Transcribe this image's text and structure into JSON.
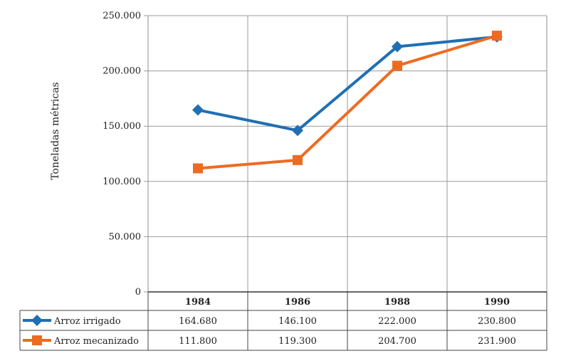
{
  "chart_data": {
    "type": "line",
    "title": "",
    "xlabel": "",
    "ylabel": "Toneladas métricas",
    "categories": [
      "1984",
      "1986",
      "1988",
      "1990"
    ],
    "ylim": [
      0,
      250000
    ],
    "yticks": [
      0,
      50000,
      100000,
      150000,
      200000,
      250000
    ],
    "ytick_labels": [
      "0",
      "50.000",
      "100.000",
      "150.000",
      "200.000",
      "250.000"
    ],
    "grid": true,
    "legend": "data-table",
    "series": [
      {
        "name": "Arroz irrigado",
        "values": [
          164680,
          146100,
          222000,
          230800
        ],
        "value_labels": [
          "164.680",
          "146.100",
          "222.000",
          "230.800"
        ],
        "color": "#1f6fb2",
        "marker": "diamond"
      },
      {
        "name": "Arroz mecanizado",
        "values": [
          111800,
          119300,
          204700,
          231900
        ],
        "value_labels": [
          "111.800",
          "119.300",
          "204.700",
          "231.900"
        ],
        "color": "#ed6b21",
        "marker": "square"
      }
    ]
  }
}
